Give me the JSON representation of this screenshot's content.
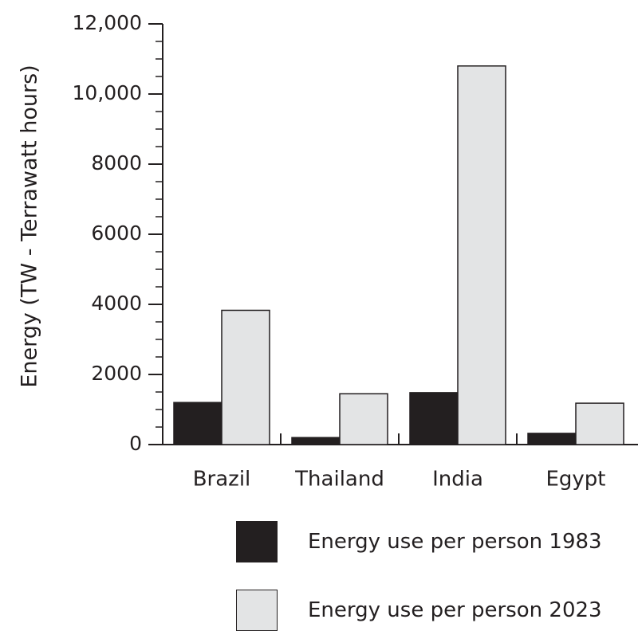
{
  "chart_data": {
    "type": "bar",
    "categories": [
      "Brazil",
      "Thailand",
      "India",
      "Egypt"
    ],
    "series": [
      {
        "name": "Energy use per person 1983",
        "values": [
          1200,
          200,
          1480,
          320
        ],
        "color": "#231f20"
      },
      {
        "name": "Energy use per person 2023",
        "values": [
          3830,
          1450,
          10800,
          1180
        ],
        "color": "#e3e4e5"
      }
    ],
    "ylabel": "Energy (TW - Terrawatt hours)",
    "xlabel": "",
    "ylim": [
      0,
      12000
    ],
    "yticks": [
      {
        "value": 0,
        "label": "0"
      },
      {
        "value": 2000,
        "label": "2000"
      },
      {
        "value": 4000,
        "label": "4000"
      },
      {
        "value": 6000,
        "label": "6000"
      },
      {
        "value": 8000,
        "label": "8000"
      },
      {
        "value": 10000,
        "label": "10,000"
      },
      {
        "value": 12000,
        "label": "12,000"
      }
    ],
    "minor_tick_step": 500,
    "grid": false,
    "legend_position": "bottom"
  }
}
